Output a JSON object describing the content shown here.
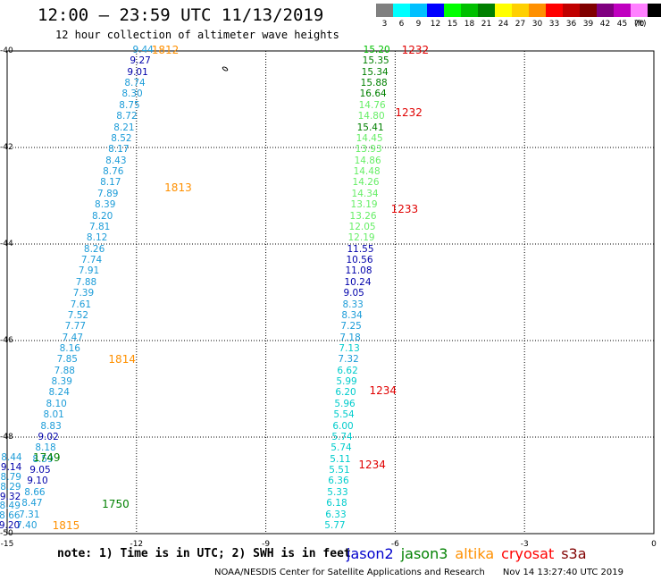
{
  "title": "12:00 — 23:59 UTC 11/13/2019",
  "subtitle": "12 hour collection of altimeter wave heights",
  "colorbar": {
    "unit": "(ft)",
    "bins": [
      {
        "label": "3",
        "color": "#808080"
      },
      {
        "label": "6",
        "color": "#00ffff"
      },
      {
        "label": "9",
        "color": "#00c0ff"
      },
      {
        "label": "12",
        "color": "#0000ff"
      },
      {
        "label": "15",
        "color": "#00ff00"
      },
      {
        "label": "18",
        "color": "#00c000"
      },
      {
        "label": "21",
        "color": "#008000"
      },
      {
        "label": "24",
        "color": "#ffff00"
      },
      {
        "label": "27",
        "color": "#ffd000"
      },
      {
        "label": "30",
        "color": "#ff9000"
      },
      {
        "label": "33",
        "color": "#ff0000"
      },
      {
        "label": "36",
        "color": "#c00000"
      },
      {
        "label": "39",
        "color": "#800000"
      },
      {
        "label": "42",
        "color": "#800080"
      },
      {
        "label": "45",
        "color": "#c000c0"
      },
      {
        "label": "70",
        "color": "#ff80ff"
      },
      {
        "label": "",
        "color": "#000000"
      }
    ]
  },
  "note": "note: 1) Time is in UTC; 2) SWH is in feet",
  "legend": [
    {
      "name": "jason2",
      "color": "#0000cc"
    },
    {
      "name": "jason3",
      "color": "#008000"
    },
    {
      "name": "altika",
      "color": "#ff9000"
    },
    {
      "name": "cryosat",
      "color": "#ff0000"
    },
    {
      "name": "s3a",
      "color": "#800000"
    }
  ],
  "footer": "NOAA/NESDIS Center for Satellite Applications and Research",
  "timestamp": "Nov 14 13:27:40 UTC 2019",
  "chart_data": {
    "type": "scatter",
    "xlim": [
      -15,
      0
    ],
    "ylim": [
      -50,
      -40
    ],
    "xticks": [
      "-15",
      "-12",
      "-9",
      "-6",
      "-3",
      "0"
    ],
    "yticks": [
      "-40",
      "-42",
      "-44",
      "-46",
      "-48",
      "-50"
    ],
    "grid": true,
    "tracks": [
      {
        "x_start": -11.8,
        "y_start": -40.0,
        "x_end": -14.5,
        "y_end": -49.85,
        "values": [
          {
            "v": "9.44",
            "c": "#1c9cd8"
          },
          {
            "v": "9.27",
            "c": "#0000aa"
          },
          {
            "v": "9.01",
            "c": "#0000aa"
          },
          {
            "v": "8.74",
            "c": "#1c9cd8"
          },
          {
            "v": "8.30",
            "c": "#1c9cd8"
          },
          {
            "v": "8.75",
            "c": "#1c9cd8"
          },
          {
            "v": "8.72",
            "c": "#1c9cd8"
          },
          {
            "v": "8.21",
            "c": "#1c9cd8"
          },
          {
            "v": "8.52",
            "c": "#1c9cd8"
          },
          {
            "v": "8.17",
            "c": "#1c9cd8"
          },
          {
            "v": "8.43",
            "c": "#1c9cd8"
          },
          {
            "v": "8.76",
            "c": "#1c9cd8"
          },
          {
            "v": "8.17",
            "c": "#1c9cd8"
          },
          {
            "v": "7.89",
            "c": "#1c9cd8"
          },
          {
            "v": "8.39",
            "c": "#1c9cd8"
          },
          {
            "v": "8.20",
            "c": "#1c9cd8"
          },
          {
            "v": "7.81",
            "c": "#1c9cd8"
          },
          {
            "v": "8.12",
            "c": "#1c9cd8"
          },
          {
            "v": "8.26",
            "c": "#1c9cd8"
          },
          {
            "v": "7.74",
            "c": "#1c9cd8"
          },
          {
            "v": "7.91",
            "c": "#1c9cd8"
          },
          {
            "v": "7.88",
            "c": "#1c9cd8"
          },
          {
            "v": "7.39",
            "c": "#1c9cd8"
          },
          {
            "v": "7.61",
            "c": "#1c9cd8"
          },
          {
            "v": "7.52",
            "c": "#1c9cd8"
          },
          {
            "v": "7.77",
            "c": "#1c9cd8"
          },
          {
            "v": "7.47",
            "c": "#1c9cd8"
          },
          {
            "v": "8.16",
            "c": "#1c9cd8"
          },
          {
            "v": "7.85",
            "c": "#1c9cd8"
          },
          {
            "v": "7.88",
            "c": "#1c9cd8"
          },
          {
            "v": "8.39",
            "c": "#1c9cd8"
          },
          {
            "v": "8.24",
            "c": "#1c9cd8"
          },
          {
            "v": "8.10",
            "c": "#1c9cd8"
          },
          {
            "v": "8.01",
            "c": "#1c9cd8"
          },
          {
            "v": "8.83",
            "c": "#1c9cd8"
          },
          {
            "v": "9.02",
            "c": "#0000aa"
          },
          {
            "v": "8.18",
            "c": "#1c9cd8"
          },
          {
            "v": "8.59",
            "c": "#1c9cd8"
          },
          {
            "v": "9.05",
            "c": "#0000aa"
          },
          {
            "v": "9.10",
            "c": "#0000aa"
          },
          {
            "v": "8.66",
            "c": "#1c9cd8"
          },
          {
            "v": "8.47",
            "c": "#1c9cd8"
          },
          {
            "v": "7.31",
            "c": "#1c9cd8"
          },
          {
            "v": "7.40",
            "c": "#1c9cd8"
          }
        ]
      },
      {
        "x_start": -14.85,
        "y_start": -48.45,
        "x_end": -14.9,
        "y_end": -49.85,
        "values": [
          {
            "v": "8.44",
            "c": "#1c9cd8"
          },
          {
            "v": "9.14",
            "c": "#0000aa"
          },
          {
            "v": "8.79",
            "c": "#1c9cd8"
          },
          {
            "v": "8.29",
            "c": "#1c9cd8"
          },
          {
            "v": "9.32",
            "c": "#0000aa"
          },
          {
            "v": "8.49",
            "c": "#1c9cd8"
          },
          {
            "v": "8.66",
            "c": "#1c9cd8"
          },
          {
            "v": "9.20",
            "c": "#0000aa"
          }
        ]
      },
      {
        "x_start": -6.45,
        "y_start": -40.0,
        "x_end": -7.35,
        "y_end": -49.85,
        "values": [
          {
            "v": "15.20",
            "c": "#00c000"
          },
          {
            "v": "15.35",
            "c": "#008000"
          },
          {
            "v": "15.34",
            "c": "#008000"
          },
          {
            "v": "15.88",
            "c": "#008000"
          },
          {
            "v": "16.64",
            "c": "#008000"
          },
          {
            "v": "14.76",
            "c": "#66ee66"
          },
          {
            "v": "14.80",
            "c": "#66ee66"
          },
          {
            "v": "15.41",
            "c": "#008000"
          },
          {
            "v": "14.45",
            "c": "#66ee66"
          },
          {
            "v": "13.93",
            "c": "#66ee66"
          },
          {
            "v": "14.86",
            "c": "#66ee66"
          },
          {
            "v": "14.48",
            "c": "#66ee66"
          },
          {
            "v": "14.26",
            "c": "#66ee66"
          },
          {
            "v": "14.34",
            "c": "#66ee66"
          },
          {
            "v": "13.19",
            "c": "#66ee66"
          },
          {
            "v": "13.26",
            "c": "#66ee66"
          },
          {
            "v": "12.05",
            "c": "#66ee66"
          },
          {
            "v": "12.19",
            "c": "#66ee66"
          },
          {
            "v": "11.55",
            "c": "#0000aa"
          },
          {
            "v": "10.56",
            "c": "#0000aa"
          },
          {
            "v": "11.08",
            "c": "#0000aa"
          },
          {
            "v": "10.24",
            "c": "#0000aa"
          },
          {
            "v": "9.05",
            "c": "#0000aa"
          },
          {
            "v": "8.33",
            "c": "#1c9cd8"
          },
          {
            "v": "8.34",
            "c": "#1c9cd8"
          },
          {
            "v": "7.25",
            "c": "#1c9cd8"
          },
          {
            "v": "7.18",
            "c": "#1c9cd8"
          },
          {
            "v": "7.13",
            "c": "#00cccc"
          },
          {
            "v": "7.32",
            "c": "#1c9cd8"
          },
          {
            "v": "6.62",
            "c": "#00cccc"
          },
          {
            "v": "5.99",
            "c": "#00cccc"
          },
          {
            "v": "6.20",
            "c": "#00cccc"
          },
          {
            "v": "5.96",
            "c": "#00cccc"
          },
          {
            "v": "5.54",
            "c": "#00cccc"
          },
          {
            "v": "6.00",
            "c": "#00cccc"
          },
          {
            "v": "5.74",
            "c": "#00cccc"
          },
          {
            "v": "5.74",
            "c": "#00cccc"
          },
          {
            "v": "5.11",
            "c": "#00cccc"
          },
          {
            "v": "5.51",
            "c": "#00cccc"
          },
          {
            "v": "6.36",
            "c": "#00cccc"
          },
          {
            "v": "5.33",
            "c": "#00cccc"
          },
          {
            "v": "6.18",
            "c": "#00cccc"
          },
          {
            "v": "6.33",
            "c": "#00cccc"
          },
          {
            "v": "5.77",
            "c": "#00cccc"
          }
        ]
      }
    ],
    "time_labels": [
      {
        "t": "1812",
        "x": -11.65,
        "y": -40.0,
        "c": "#ff9000"
      },
      {
        "t": "1813",
        "x": -11.35,
        "y": -42.85,
        "c": "#ff9000"
      },
      {
        "t": "1814",
        "x": -12.65,
        "y": -46.4,
        "c": "#ff9000"
      },
      {
        "t": "1815",
        "x": -13.95,
        "y": -49.85,
        "c": "#ff9000"
      },
      {
        "t": "1749",
        "x": -14.4,
        "y": -48.45,
        "c": "#008000"
      },
      {
        "t": "1750",
        "x": -12.8,
        "y": -49.4,
        "c": "#008000"
      },
      {
        "t": "1232",
        "x": -5.85,
        "y": -40.0,
        "c": "#e00000"
      },
      {
        "t": "1232",
        "x": -6.0,
        "y": -41.3,
        "c": "#e00000"
      },
      {
        "t": "1233",
        "x": -6.1,
        "y": -43.3,
        "c": "#e00000"
      },
      {
        "t": "1234",
        "x": -6.6,
        "y": -47.05,
        "c": "#e00000"
      },
      {
        "t": "1234",
        "x": -6.85,
        "y": -48.6,
        "c": "#e00000"
      }
    ]
  }
}
